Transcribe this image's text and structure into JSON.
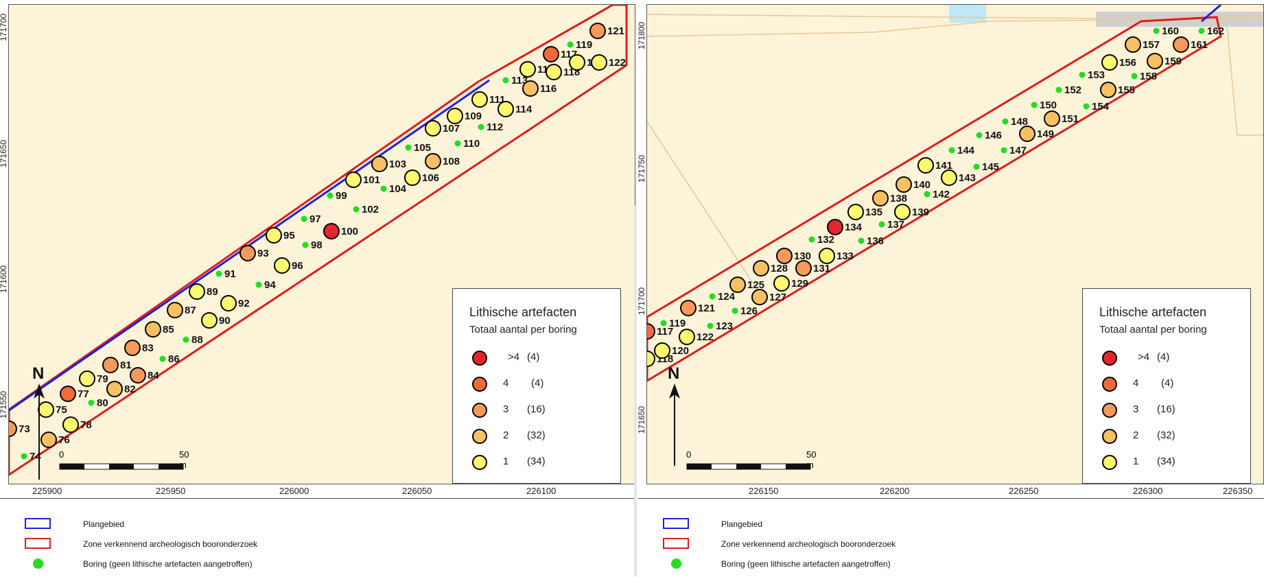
{
  "legend": {
    "title": "Lithische artefacten",
    "subtitle": "Totaal aantal per boring",
    "classes": [
      {
        "label": ">4",
        "count": "(4)",
        "color": "#e8252a"
      },
      {
        "label": "4",
        "count": "(4)",
        "color": "#f06a3a"
      },
      {
        "label": "3",
        "count": "(16)",
        "color": "#f59a5a"
      },
      {
        "label": "2",
        "count": "(32)",
        "color": "#f8c060"
      },
      {
        "label": "1",
        "count": "(34)",
        "color": "#fcf870"
      }
    ]
  },
  "bottom_legend": {
    "plan_area": "Plangebied",
    "survey_zone": "Zone verkennend archeologisch booronderzoek",
    "boring_none": "Boring (geen lithische artefacten aangetroffen)"
  },
  "colors": {
    "plan_area": "#1a22dd",
    "survey_zone": "#e01c1c",
    "boring_none": "#22dd22",
    "background": "#fdf3d8"
  },
  "north_label": "N",
  "icons": [
    "north-arrow-icon",
    "scale-bar-icon"
  ],
  "panels": [
    {
      "id": "left",
      "scale_bar": {
        "start": "0",
        "end": "50 m"
      },
      "x_ticks": [
        "225900",
        "225950",
        "226000",
        "226050",
        "226100"
      ],
      "y_ticks": [
        "171700",
        "171650",
        "171600",
        "171550"
      ],
      "borings": [
        {
          "id": "73",
          "cls": 3
        },
        {
          "id": "74",
          "cls": 0
        },
        {
          "id": "75",
          "cls": 1
        },
        {
          "id": "76",
          "cls": 2
        },
        {
          "id": "77",
          "cls": 4
        },
        {
          "id": "78",
          "cls": 1
        },
        {
          "id": "79",
          "cls": 1
        },
        {
          "id": "80",
          "cls": 0
        },
        {
          "id": "81",
          "cls": 3
        },
        {
          "id": "82",
          "cls": 2
        },
        {
          "id": "83",
          "cls": 3
        },
        {
          "id": "84",
          "cls": 3
        },
        {
          "id": "85",
          "cls": 2
        },
        {
          "id": "86",
          "cls": 0
        },
        {
          "id": "87",
          "cls": 2
        },
        {
          "id": "88",
          "cls": 0
        },
        {
          "id": "89",
          "cls": 1
        },
        {
          "id": "90",
          "cls": 1
        },
        {
          "id": "91",
          "cls": 0
        },
        {
          "id": "92",
          "cls": 1
        },
        {
          "id": "93",
          "cls": 3
        },
        {
          "id": "94",
          "cls": 0
        },
        {
          "id": "95",
          "cls": 1
        },
        {
          "id": "96",
          "cls": 1
        },
        {
          "id": "97",
          "cls": 0
        },
        {
          "id": "98",
          "cls": 0
        },
        {
          "id": "99",
          "cls": 0
        },
        {
          "id": "100",
          "cls": 5
        },
        {
          "id": "101",
          "cls": 1
        },
        {
          "id": "102",
          "cls": 0
        },
        {
          "id": "103",
          "cls": 2
        },
        {
          "id": "104",
          "cls": 0
        },
        {
          "id": "105",
          "cls": 0
        },
        {
          "id": "106",
          "cls": 1
        },
        {
          "id": "107",
          "cls": 1
        },
        {
          "id": "108",
          "cls": 2
        },
        {
          "id": "109",
          "cls": 1
        },
        {
          "id": "110",
          "cls": 0
        },
        {
          "id": "111",
          "cls": 1
        },
        {
          "id": "112",
          "cls": 0
        },
        {
          "id": "113",
          "cls": 0
        },
        {
          "id": "114",
          "cls": 1
        },
        {
          "id": "115",
          "cls": 1
        },
        {
          "id": "116",
          "cls": 2
        },
        {
          "id": "117",
          "cls": 4
        },
        {
          "id": "118",
          "cls": 1
        },
        {
          "id": "119",
          "cls": 0
        },
        {
          "id": "120",
          "cls": 1
        },
        {
          "id": "121",
          "cls": 3
        },
        {
          "id": "122",
          "cls": 1
        }
      ]
    },
    {
      "id": "right",
      "scale_bar": {
        "start": "0",
        "end": "50 m"
      },
      "x_ticks": [
        "226150",
        "226200",
        "226250",
        "226300",
        "226350"
      ],
      "y_ticks": [
        "171800",
        "171750",
        "171700",
        "171650"
      ],
      "borings": [
        {
          "id": "117",
          "cls": 4
        },
        {
          "id": "118",
          "cls": 1
        },
        {
          "id": "119",
          "cls": 0
        },
        {
          "id": "120",
          "cls": 1
        },
        {
          "id": "121",
          "cls": 3
        },
        {
          "id": "122",
          "cls": 1
        },
        {
          "id": "123",
          "cls": 0
        },
        {
          "id": "124",
          "cls": 0
        },
        {
          "id": "125",
          "cls": 2
        },
        {
          "id": "126",
          "cls": 0
        },
        {
          "id": "127",
          "cls": 2
        },
        {
          "id": "128",
          "cls": 2
        },
        {
          "id": "129",
          "cls": 1
        },
        {
          "id": "130",
          "cls": 3
        },
        {
          "id": "131",
          "cls": 3
        },
        {
          "id": "132",
          "cls": 0
        },
        {
          "id": "133",
          "cls": 1
        },
        {
          "id": "134",
          "cls": 5
        },
        {
          "id": "135",
          "cls": 1
        },
        {
          "id": "136",
          "cls": 0
        },
        {
          "id": "137",
          "cls": 0
        },
        {
          "id": "138",
          "cls": 2
        },
        {
          "id": "139",
          "cls": 1
        },
        {
          "id": "140",
          "cls": 2
        },
        {
          "id": "141",
          "cls": 1
        },
        {
          "id": "142",
          "cls": 0
        },
        {
          "id": "143",
          "cls": 1
        },
        {
          "id": "144",
          "cls": 0
        },
        {
          "id": "145",
          "cls": 0
        },
        {
          "id": "146",
          "cls": 0
        },
        {
          "id": "147",
          "cls": 0
        },
        {
          "id": "148",
          "cls": 0
        },
        {
          "id": "149",
          "cls": 2
        },
        {
          "id": "150",
          "cls": 0
        },
        {
          "id": "151",
          "cls": 2
        },
        {
          "id": "152",
          "cls": 0
        },
        {
          "id": "153",
          "cls": 0
        },
        {
          "id": "154",
          "cls": 0
        },
        {
          "id": "155",
          "cls": 2
        },
        {
          "id": "156",
          "cls": 1
        },
        {
          "id": "157",
          "cls": 2
        },
        {
          "id": "158",
          "cls": 0
        },
        {
          "id": "159",
          "cls": 2
        },
        {
          "id": "160",
          "cls": 0
        },
        {
          "id": "161",
          "cls": 3
        },
        {
          "id": "162",
          "cls": 0
        }
      ]
    }
  ]
}
